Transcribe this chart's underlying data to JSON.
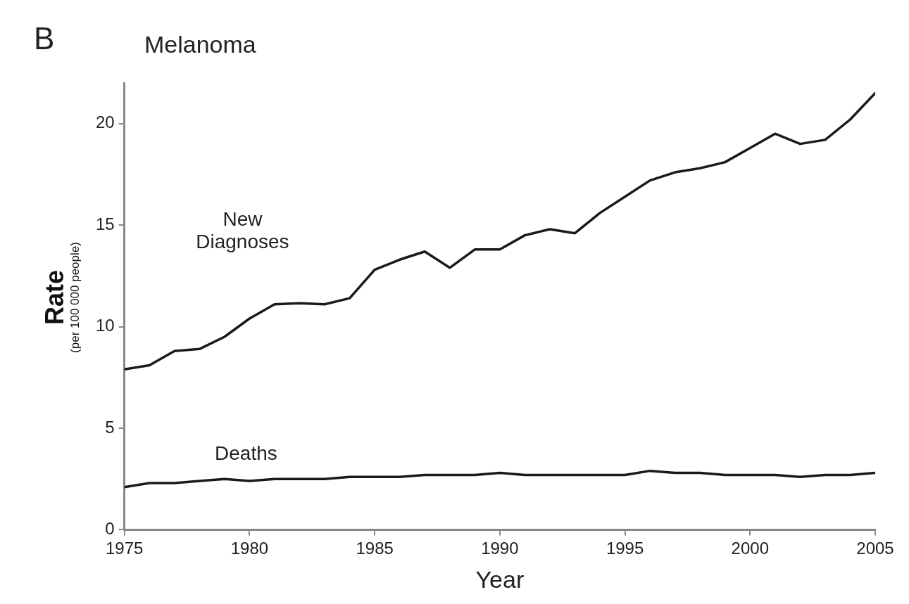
{
  "chart_data": {
    "type": "line",
    "title": "Melanoma",
    "xlabel": "Year",
    "ylabel": "Rate (per 100 000 people)",
    "annotations": [
      "B"
    ],
    "x": [
      1975,
      1976,
      1977,
      1978,
      1979,
      1980,
      1981,
      1982,
      1983,
      1984,
      1985,
      1986,
      1987,
      1988,
      1989,
      1990,
      1991,
      1992,
      1993,
      1994,
      1995,
      1996,
      1997,
      1998,
      1999,
      2000,
      2001,
      2002,
      2003,
      2004,
      2005
    ],
    "series": [
      {
        "name": "New Diagnoses",
        "color": "#1a1a1a",
        "values": [
          7.9,
          8.1,
          8.8,
          8.9,
          9.5,
          10.4,
          11.1,
          11.15,
          11.1,
          11.4,
          12.8,
          13.3,
          13.7,
          12.9,
          13.8,
          13.8,
          14.5,
          14.8,
          14.6,
          15.6,
          16.4,
          17.2,
          17.6,
          17.8,
          18.1,
          18.8,
          19.5,
          19.0,
          19.2,
          20.2,
          21.5
        ]
      },
      {
        "name": "Deaths",
        "color": "#1a1a1a",
        "values": [
          2.1,
          2.3,
          2.3,
          2.4,
          2.5,
          2.4,
          2.5,
          2.5,
          2.5,
          2.6,
          2.6,
          2.6,
          2.7,
          2.7,
          2.7,
          2.8,
          2.7,
          2.7,
          2.7,
          2.7,
          2.7,
          2.9,
          2.8,
          2.8,
          2.7,
          2.7,
          2.7,
          2.6,
          2.7,
          2.7,
          2.8
        ]
      }
    ],
    "xlim": [
      1975,
      2005
    ],
    "ylim": [
      0,
      22
    ],
    "xticks": [
      1975,
      1980,
      1985,
      1990,
      1995,
      2000,
      2005
    ],
    "yticks": [
      0,
      5,
      10,
      15,
      20
    ],
    "grid": false,
    "legend": false,
    "marker": "none",
    "line_style": "solid"
  }
}
